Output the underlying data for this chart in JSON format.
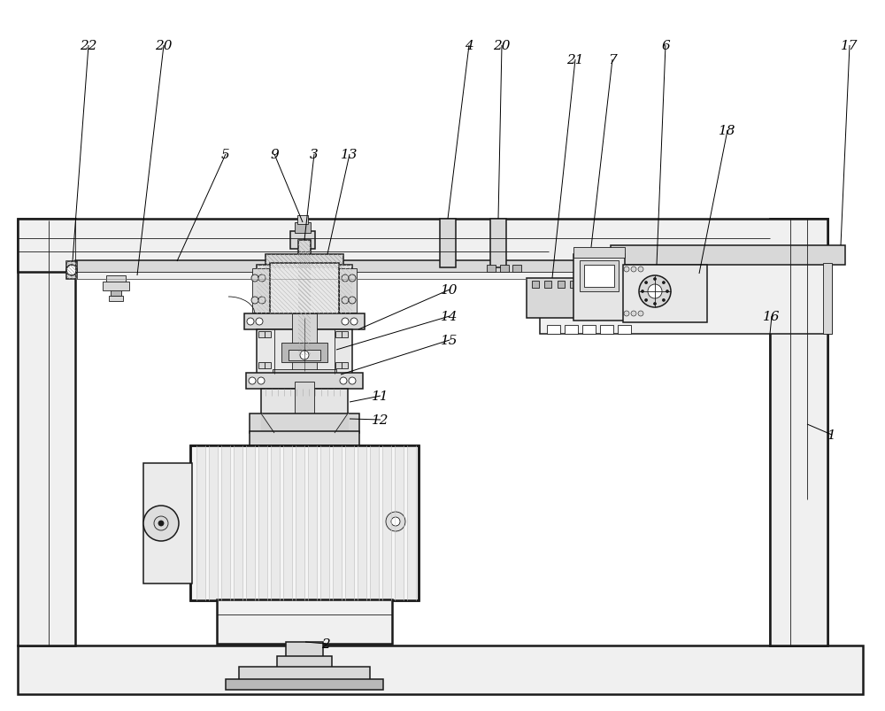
{
  "bg_color": "#ffffff",
  "line_color": "#1a1a1a",
  "figsize": [
    10.0,
    8.04
  ],
  "dpi": 100,
  "lw_thick": 1.8,
  "lw_med": 1.1,
  "lw_thin": 0.6,
  "lw_hair": 0.4,
  "gray_light": "#f0f0f0",
  "gray_med": "#d8d8d8",
  "gray_dark": "#b8b8b8",
  "gray_hatch": "#c0c0c0",
  "white": "#ffffff",
  "label_fontsize": 11
}
